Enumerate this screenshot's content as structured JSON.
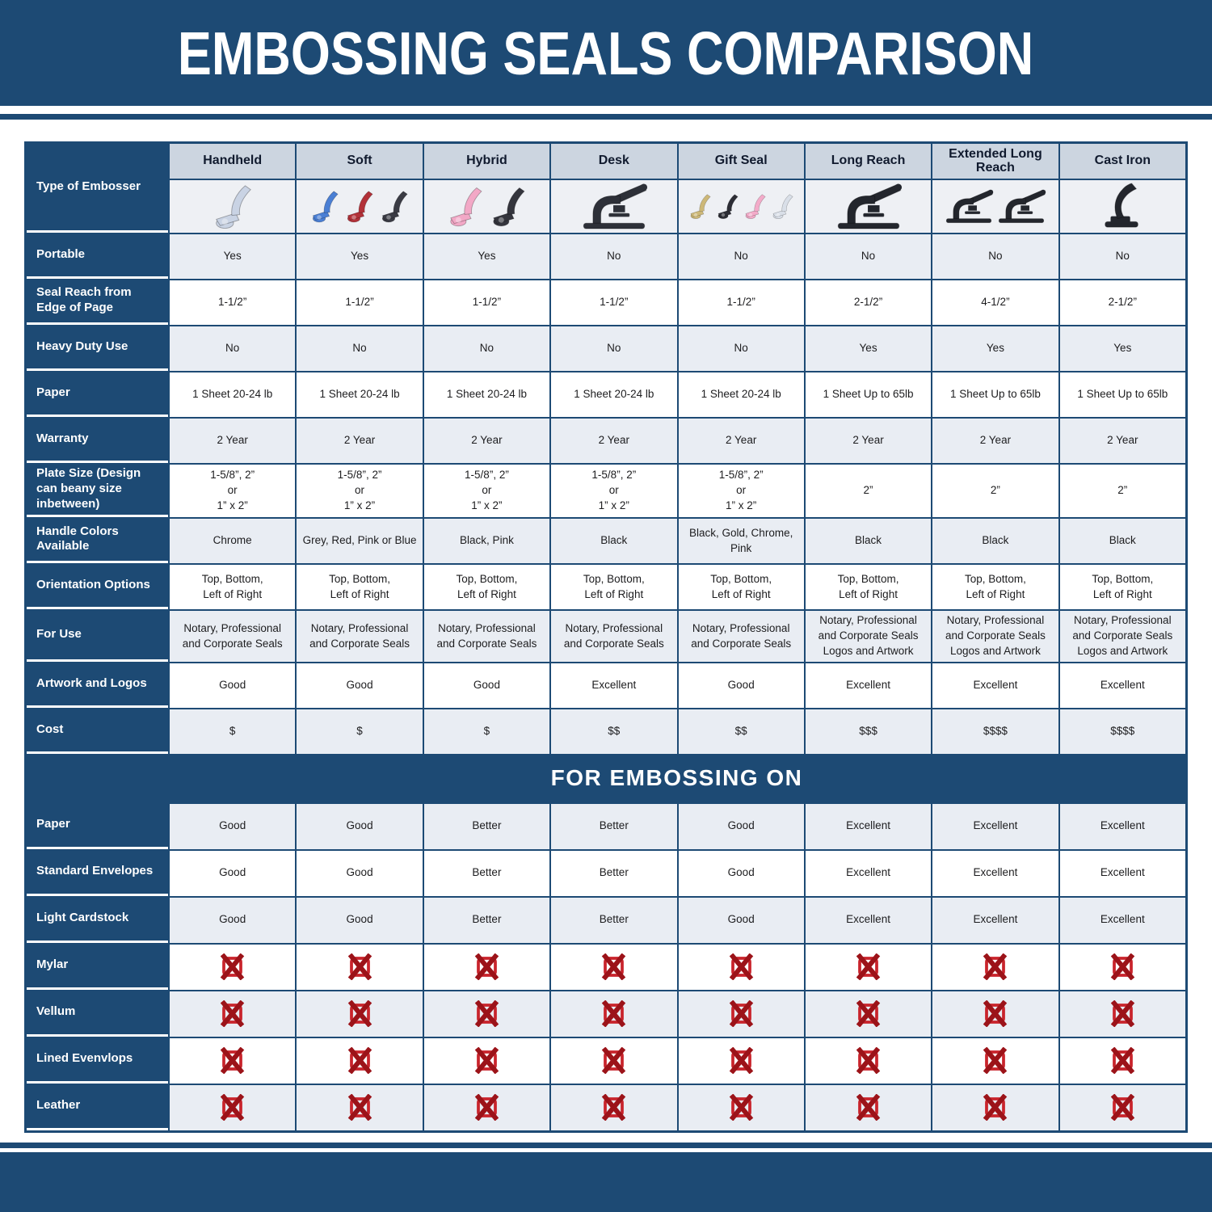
{
  "title": "EMBOSSING SEALS COMPARISON",
  "banner": {
    "label": "FOR EMBOSSING ON"
  },
  "colors": {
    "navy": "#1d4a74",
    "light_cell": "#e9edf3",
    "header_label_bg": "#ccd5e0",
    "image_row_bg": "#eef0f4",
    "x_box_red": "#c9242c",
    "x_cross_red": "#9c1319"
  },
  "row_header_column": {
    "type_of_embosser_label": "Type of Embosser"
  },
  "columns": [
    {
      "label": "Handheld",
      "embosser": {
        "style": "plier",
        "colors": [
          "#c9d3e4"
        ]
      }
    },
    {
      "label": "Soft",
      "embosser": {
        "style": "plier",
        "colors": [
          "#4a7fd4",
          "#b23138",
          "#3a3b44"
        ]
      }
    },
    {
      "label": "Hybrid",
      "embosser": {
        "style": "plier",
        "colors": [
          "#f2a8c6",
          "#34353d"
        ]
      }
    },
    {
      "label": "Desk",
      "embosser": {
        "style": "press",
        "colors": [
          "#2d3038"
        ]
      }
    },
    {
      "label": "Gift Seal",
      "embosser": {
        "style": "plier",
        "colors": [
          "#cdb878",
          "#2c2d35",
          "#f3abc9",
          "#d9dfe8"
        ]
      }
    },
    {
      "label": "Long Reach",
      "embosser": {
        "style": "press",
        "colors": [
          "#23262d"
        ]
      }
    },
    {
      "label": "Extended Long Reach",
      "embosser": {
        "style": "press",
        "colors": [
          "#23262d",
          "#23262d"
        ]
      }
    },
    {
      "label": "Cast Iron",
      "embosser": {
        "style": "cast",
        "colors": [
          "#23262d"
        ]
      }
    }
  ],
  "spec_rows": [
    {
      "label": "Portable",
      "values": [
        "Yes",
        "Yes",
        "Yes",
        "No",
        "No",
        "No",
        "No",
        "No"
      ]
    },
    {
      "label": "Seal Reach from Edge of Page",
      "values": [
        "1-1/2”",
        "1-1/2”",
        "1-1/2”",
        "1-1/2”",
        "1-1/2”",
        "2-1/2”",
        "4-1/2”",
        "2-1/2”"
      ]
    },
    {
      "label": "Heavy Duty Use",
      "values": [
        "No",
        "No",
        "No",
        "No",
        "No",
        "Yes",
        "Yes",
        "Yes"
      ]
    },
    {
      "label": "Paper",
      "values": [
        "1 Sheet 20-24 lb",
        "1 Sheet 20-24 lb",
        "1 Sheet 20-24 lb",
        "1 Sheet 20-24 lb",
        "1 Sheet 20-24 lb",
        "1 Sheet Up to 65lb",
        "1 Sheet Up to 65lb",
        "1 Sheet Up to 65lb"
      ]
    },
    {
      "label": "Warranty",
      "values": [
        "2 Year",
        "2 Year",
        "2 Year",
        "2 Year",
        "2 Year",
        "2 Year",
        "2 Year",
        "2 Year"
      ]
    },
    {
      "label": "Plate Size (Design can beany size inbetween)",
      "values": [
        "1-5/8”, 2”\nor\n1” x 2”",
        "1-5/8”, 2”\nor\n1” x 2”",
        "1-5/8”, 2”\nor\n1” x 2”",
        "1-5/8”, 2”\nor\n1” x 2”",
        "1-5/8”, 2”\nor\n1” x 2”",
        "2”",
        "2”",
        "2”"
      ]
    },
    {
      "label": "Handle Colors Available",
      "values": [
        "Chrome",
        "Grey, Red, Pink or Blue",
        "Black, Pink",
        "Black",
        "Black, Gold, Chrome, Pink",
        "Black",
        "Black",
        "Black"
      ]
    },
    {
      "label": "Orientation Options",
      "values": [
        "Top, Bottom,\nLeft of Right",
        "Top, Bottom,\nLeft of Right",
        "Top, Bottom,\nLeft of Right",
        "Top, Bottom,\nLeft of Right",
        "Top, Bottom,\nLeft of Right",
        "Top, Bottom,\nLeft of Right",
        "Top, Bottom,\nLeft of Right",
        "Top, Bottom,\nLeft of Right"
      ]
    },
    {
      "label": "For Use",
      "values": [
        "Notary, Professional\nand Corporate Seals",
        "Notary, Professional\nand Corporate Seals",
        "Notary, Professional\nand Corporate Seals",
        "Notary, Professional\nand Corporate Seals",
        "Notary, Professional\nand Corporate Seals",
        "Notary, Professional\nand Corporate Seals\nLogos and Artwork",
        "Notary, Professional\nand Corporate Seals\nLogos and Artwork",
        "Notary, Professional\nand Corporate Seals\nLogos and Artwork"
      ]
    },
    {
      "label": "Artwork and Logos",
      "values": [
        "Good",
        "Good",
        "Good",
        "Excellent",
        "Good",
        "Excellent",
        "Excellent",
        "Excellent"
      ]
    },
    {
      "label": "Cost",
      "values": [
        "$",
        "$",
        "$",
        "$$",
        "$$",
        "$$$",
        "$$$$",
        "$$$$"
      ]
    }
  ],
  "embossing_rows": [
    {
      "label": "Paper",
      "values": [
        "Good",
        "Good",
        "Better",
        "Better",
        "Good",
        "Excellent",
        "Excellent",
        "Excellent"
      ]
    },
    {
      "label": "Standard Envelopes",
      "values": [
        "Good",
        "Good",
        "Better",
        "Better",
        "Good",
        "Excellent",
        "Excellent",
        "Excellent"
      ]
    },
    {
      "label": "Light Cardstock",
      "values": [
        "Good",
        "Good",
        "Better",
        "Better",
        "Good",
        "Excellent",
        "Excellent",
        "Excellent"
      ]
    },
    {
      "label": "Mylar",
      "values": [
        "X-ICON",
        "X-ICON",
        "X-ICON",
        "X-ICON",
        "X-ICON",
        "X-ICON",
        "X-ICON",
        "X-ICON"
      ]
    },
    {
      "label": "Vellum",
      "values": [
        "X-ICON",
        "X-ICON",
        "X-ICON",
        "X-ICON",
        "X-ICON",
        "X-ICON",
        "X-ICON",
        "X-ICON"
      ]
    },
    {
      "label": "Lined Evenvlops",
      "values": [
        "X-ICON",
        "X-ICON",
        "X-ICON",
        "X-ICON",
        "X-ICON",
        "X-ICON",
        "X-ICON",
        "X-ICON"
      ]
    },
    {
      "label": "Leather",
      "values": [
        "X-ICON",
        "X-ICON",
        "X-ICON",
        "X-ICON",
        "X-ICON",
        "X-ICON",
        "X-ICON",
        "X-ICON"
      ]
    }
  ]
}
